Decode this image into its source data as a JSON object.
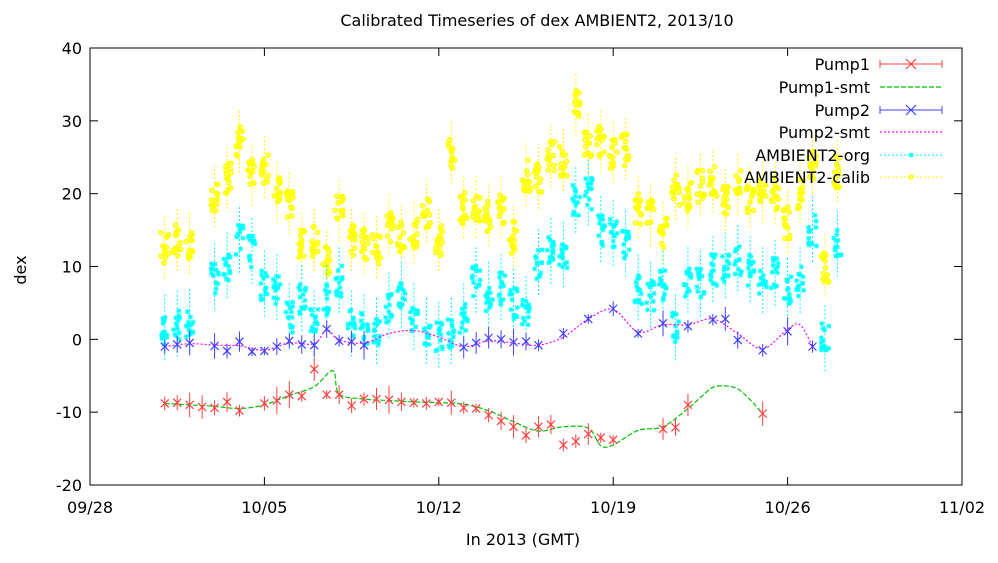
{
  "chart_data": {
    "type": "scatter",
    "title": "Calibrated Timeseries of dex AMBIENT2, 2013/10",
    "xlabel": "In 2013 (GMT)",
    "ylabel": "dex",
    "x_ticks": [
      "09/28",
      "10/05",
      "10/12",
      "10/19",
      "10/26",
      "11/02"
    ],
    "xlim": [
      "2013-09-28",
      "2013-11-02"
    ],
    "ylim": [
      -20,
      40
    ],
    "y_ticks": [
      -20,
      -10,
      0,
      10,
      20,
      30,
      40
    ],
    "grid": false,
    "legend_position": "top-right",
    "series": [
      {
        "name": "Pump1",
        "style": "points-with-errorbars",
        "marker": "x",
        "color": "#ff4040",
        "x": [
          "2013-10-01",
          "2013-10-01 12:00",
          "2013-10-02",
          "2013-10-02 12:00",
          "2013-10-03",
          "2013-10-03 12:00",
          "2013-10-04",
          "2013-10-05",
          "2013-10-05 12:00",
          "2013-10-06",
          "2013-10-06 12:00",
          "2013-10-07",
          "2013-10-07 12:00",
          "2013-10-08",
          "2013-10-08 12:00",
          "2013-10-09",
          "2013-10-09 12:00",
          "2013-10-10",
          "2013-10-10 12:00",
          "2013-10-11",
          "2013-10-11 12:00",
          "2013-10-12",
          "2013-10-12 12:00",
          "2013-10-13",
          "2013-10-13 12:00",
          "2013-10-14",
          "2013-10-14 12:00",
          "2013-10-15",
          "2013-10-15 12:00",
          "2013-10-16",
          "2013-10-16 12:00",
          "2013-10-17",
          "2013-10-17 12:00",
          "2013-10-18",
          "2013-10-18 12:00",
          "2013-10-19",
          "2013-10-21",
          "2013-10-21 12:00",
          "2013-10-22",
          "2013-10-25"
        ],
        "y": [
          -8.8,
          -8.7,
          -9.0,
          -9.3,
          -9.4,
          -8.6,
          -9.8,
          -8.8,
          -8.4,
          -7.6,
          -7.8,
          -4.1,
          -7.6,
          -7.6,
          -9.1,
          -8.2,
          -8.2,
          -8.3,
          -8.6,
          -8.7,
          -8.8,
          -8.6,
          -8.7,
          -9.4,
          -9.5,
          -10.4,
          -11.2,
          -12.0,
          -13.2,
          -12.0,
          -11.7,
          -14.5,
          -14.0,
          -13.0,
          -13.5,
          -13.8,
          -12.3,
          -12.1,
          -9.0,
          -10.2
        ]
      },
      {
        "name": "Pump1-smt",
        "style": "dashed-line",
        "color": "#00c000",
        "x": [
          "2013-10-01",
          "2013-10-02",
          "2013-10-03",
          "2013-10-04",
          "2013-10-05",
          "2013-10-06",
          "2013-10-07",
          "2013-10-07 18:00",
          "2013-10-08",
          "2013-10-09",
          "2013-10-10",
          "2013-10-11",
          "2013-10-12",
          "2013-10-13",
          "2013-10-14",
          "2013-10-15",
          "2013-10-16",
          "2013-10-17",
          "2013-10-18",
          "2013-10-18 12:00",
          "2013-10-19",
          "2013-10-20",
          "2013-10-21",
          "2013-10-22",
          "2013-10-22 12:00",
          "2013-10-23",
          "2013-10-23 12:00",
          "2013-10-24",
          "2013-10-24 12:00",
          "2013-10-25"
        ],
        "y": [
          -8.8,
          -9.0,
          -9.2,
          -9.5,
          -9.0,
          -7.7,
          -6.5,
          -4.3,
          -7.5,
          -8.2,
          -8.4,
          -8.6,
          -8.7,
          -8.9,
          -9.8,
          -11.3,
          -12.6,
          -12.0,
          -12.2,
          -14.6,
          -14.5,
          -12.5,
          -12.0,
          -9.5,
          -8.0,
          -6.6,
          -6.4,
          -6.8,
          -8.3,
          -10.2
        ]
      },
      {
        "name": "Pump2",
        "style": "points-with-errorbars",
        "marker": "x",
        "color": "#4040ff",
        "x": [
          "2013-10-01",
          "2013-10-01 12:00",
          "2013-10-02",
          "2013-10-03",
          "2013-10-03 12:00",
          "2013-10-04",
          "2013-10-04 12:00",
          "2013-10-05",
          "2013-10-05 12:00",
          "2013-10-06",
          "2013-10-06 12:00",
          "2013-10-07",
          "2013-10-07 12:00",
          "2013-10-08",
          "2013-10-08 12:00",
          "2013-10-09",
          "2013-10-13",
          "2013-10-13 12:00",
          "2013-10-14",
          "2013-10-14 12:00",
          "2013-10-15",
          "2013-10-15 12:00",
          "2013-10-16",
          "2013-10-17",
          "2013-10-18",
          "2013-10-19",
          "2013-10-20",
          "2013-10-21",
          "2013-10-22",
          "2013-10-23",
          "2013-10-23 12:00",
          "2013-10-24",
          "2013-10-25",
          "2013-10-26",
          "2013-10-27"
        ],
        "y": [
          -1.0,
          -0.7,
          -0.5,
          -0.9,
          -1.6,
          -0.3,
          -1.7,
          -1.6,
          -1.0,
          -0.2,
          -0.7,
          -0.8,
          1.4,
          -0.2,
          -0.3,
          -0.8,
          -1.1,
          -0.5,
          0.2,
          0.0,
          -0.4,
          -0.3,
          -0.8,
          0.8,
          2.8,
          4.2,
          0.8,
          2.2,
          1.8,
          2.7,
          2.8,
          -0.1,
          -1.5,
          1.1,
          -1.0
        ]
      },
      {
        "name": "Pump2-smt",
        "style": "dotted-line",
        "color": "#ff00ff",
        "x": [
          "2013-10-01",
          "2013-10-02",
          "2013-10-03",
          "2013-10-04",
          "2013-10-05",
          "2013-10-06",
          "2013-10-07",
          "2013-10-07 12:00",
          "2013-10-08",
          "2013-10-09",
          "2013-10-10",
          "2013-10-11",
          "2013-10-12",
          "2013-10-13",
          "2013-10-14",
          "2013-10-15",
          "2013-10-16",
          "2013-10-17",
          "2013-10-18",
          "2013-10-19",
          "2013-10-20",
          "2013-10-21",
          "2013-10-22",
          "2013-10-23",
          "2013-10-24",
          "2013-10-25",
          "2013-10-26",
          "2013-10-26 12:00",
          "2013-10-27"
        ],
        "y": [
          -1.0,
          -0.6,
          -0.8,
          -0.9,
          -1.5,
          -0.5,
          -0.6,
          1.3,
          -0.1,
          -0.5,
          0.8,
          1.2,
          0.3,
          -1.0,
          -0.2,
          -0.5,
          -0.8,
          0.3,
          2.8,
          4.1,
          1.0,
          2.0,
          2.0,
          2.8,
          0.8,
          -1.3,
          1.4,
          2.0,
          -1.0
        ]
      },
      {
        "name": "AMBIENT2-org",
        "style": "point-clusters",
        "marker": "*",
        "color": "#00ffff",
        "x": [
          "2013-10-01",
          "2013-10-01 12:00",
          "2013-10-02",
          "2013-10-03",
          "2013-10-03 12:00",
          "2013-10-04",
          "2013-10-04 12:00",
          "2013-10-05",
          "2013-10-05 12:00",
          "2013-10-06",
          "2013-10-06 12:00",
          "2013-10-07",
          "2013-10-07 12:00",
          "2013-10-08",
          "2013-10-08 12:00",
          "2013-10-09",
          "2013-10-09 12:00",
          "2013-10-10",
          "2013-10-10 12:00",
          "2013-10-11",
          "2013-10-11 12:00",
          "2013-10-12",
          "2013-10-12 12:00",
          "2013-10-13",
          "2013-10-13 12:00",
          "2013-10-14",
          "2013-10-14 12:00",
          "2013-10-15",
          "2013-10-15 12:00",
          "2013-10-16",
          "2013-10-16 12:00",
          "2013-10-17",
          "2013-10-17 12:00",
          "2013-10-18",
          "2013-10-18 12:00",
          "2013-10-19",
          "2013-10-19 12:00",
          "2013-10-20",
          "2013-10-20 12:00",
          "2013-10-21",
          "2013-10-21 12:00",
          "2013-10-22",
          "2013-10-22 12:00",
          "2013-10-23",
          "2013-10-23 12:00",
          "2013-10-24",
          "2013-10-24 12:00",
          "2013-10-25",
          "2013-10-25 12:00",
          "2013-10-26",
          "2013-10-26 12:00",
          "2013-10-27",
          "2013-10-27 12:00",
          "2013-10-28"
        ],
        "y": [
          1.5,
          2.0,
          2.2,
          8.5,
          10.0,
          13.5,
          12.0,
          7.5,
          7.0,
          3.0,
          5.5,
          2.0,
          5.5,
          8.0,
          2.0,
          1.5,
          1.0,
          4.5,
          6.0,
          3.0,
          1.0,
          0.5,
          1.0,
          3.0,
          8.0,
          6.0,
          7.0,
          5.0,
          4.0,
          10.5,
          12.0,
          11.5,
          19.0,
          20.0,
          15.0,
          14.5,
          13.0,
          7.0,
          6.0,
          7.5,
          1.5,
          8.0,
          7.5,
          9.5,
          10.0,
          11.0,
          9.5,
          8.0,
          9.0,
          6.5,
          8.0,
          15.0,
          0.0,
          13.0
        ]
      },
      {
        "name": "AMBIENT2-calib",
        "style": "point-clusters",
        "marker": "o",
        "color": "#ffff00",
        "x": [
          "2013-10-01",
          "2013-10-01 12:00",
          "2013-10-02",
          "2013-10-03",
          "2013-10-03 12:00",
          "2013-10-04",
          "2013-10-04 12:00",
          "2013-10-05",
          "2013-10-05 12:00",
          "2013-10-06",
          "2013-10-06 12:00",
          "2013-10-07",
          "2013-10-07 12:00",
          "2013-10-08",
          "2013-10-08 12:00",
          "2013-10-09",
          "2013-10-09 12:00",
          "2013-10-10",
          "2013-10-10 12:00",
          "2013-10-11",
          "2013-10-11 12:00",
          "2013-10-12",
          "2013-10-12 12:00",
          "2013-10-13",
          "2013-10-13 12:00",
          "2013-10-14",
          "2013-10-14 12:00",
          "2013-10-15",
          "2013-10-15 12:00",
          "2013-10-16",
          "2013-10-16 12:00",
          "2013-10-17",
          "2013-10-17 12:00",
          "2013-10-18",
          "2013-10-18 12:00",
          "2013-10-19",
          "2013-10-19 12:00",
          "2013-10-20",
          "2013-10-20 12:00",
          "2013-10-21",
          "2013-10-21 12:00",
          "2013-10-22",
          "2013-10-22 12:00",
          "2013-10-23",
          "2013-10-23 12:00",
          "2013-10-24",
          "2013-10-24 12:00",
          "2013-10-25",
          "2013-10-25 12:00",
          "2013-10-26",
          "2013-10-26 12:00",
          "2013-10-27",
          "2013-10-27 12:00",
          "2013-10-28"
        ],
        "y": [
          12.5,
          13.5,
          13.0,
          19.5,
          22.0,
          27.0,
          22.5,
          23.5,
          20.0,
          18.5,
          13.0,
          13.5,
          10.5,
          17.5,
          13.5,
          13.0,
          12.5,
          15.5,
          14.0,
          14.5,
          17.5,
          13.5,
          25.5,
          18.0,
          18.0,
          17.0,
          18.0,
          14.0,
          22.5,
          22.0,
          25.0,
          24.5,
          32.0,
          26.5,
          27.0,
          25.5,
          26.0,
          18.0,
          17.0,
          14.5,
          20.5,
          19.5,
          21.0,
          21.5,
          19.0,
          21.0,
          19.5,
          20.0,
          20.0,
          16.0,
          20.0,
          24.0,
          10.0,
          23.0
        ]
      }
    ]
  }
}
